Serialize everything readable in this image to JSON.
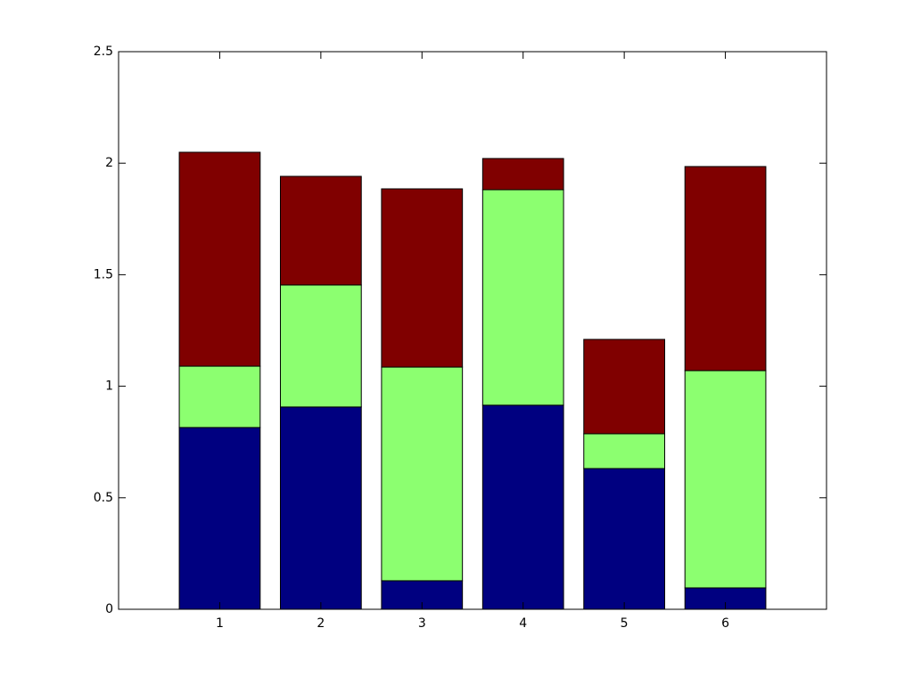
{
  "chart_data": {
    "type": "stacked-bar",
    "x": [
      1,
      2,
      3,
      4,
      5,
      6
    ],
    "series": [
      {
        "color": "#000080",
        "values": [
          0.815,
          0.907,
          0.128,
          0.915,
          0.631,
          0.096
        ]
      },
      {
        "color": "#8cff70",
        "values": [
          0.275,
          0.547,
          0.958,
          0.966,
          0.156,
          0.974
        ]
      },
      {
        "color": "#800000",
        "values": [
          0.959,
          0.487,
          0.799,
          0.14,
          0.423,
          0.915
        ]
      }
    ],
    "xlim": [
      0,
      7
    ],
    "xticks": [
      1,
      2,
      3,
      4,
      5,
      6
    ],
    "ylim": [
      0,
      2.5
    ],
    "yticks": [
      0,
      0.5,
      1,
      1.5,
      2,
      2.5
    ],
    "grid": false
  }
}
